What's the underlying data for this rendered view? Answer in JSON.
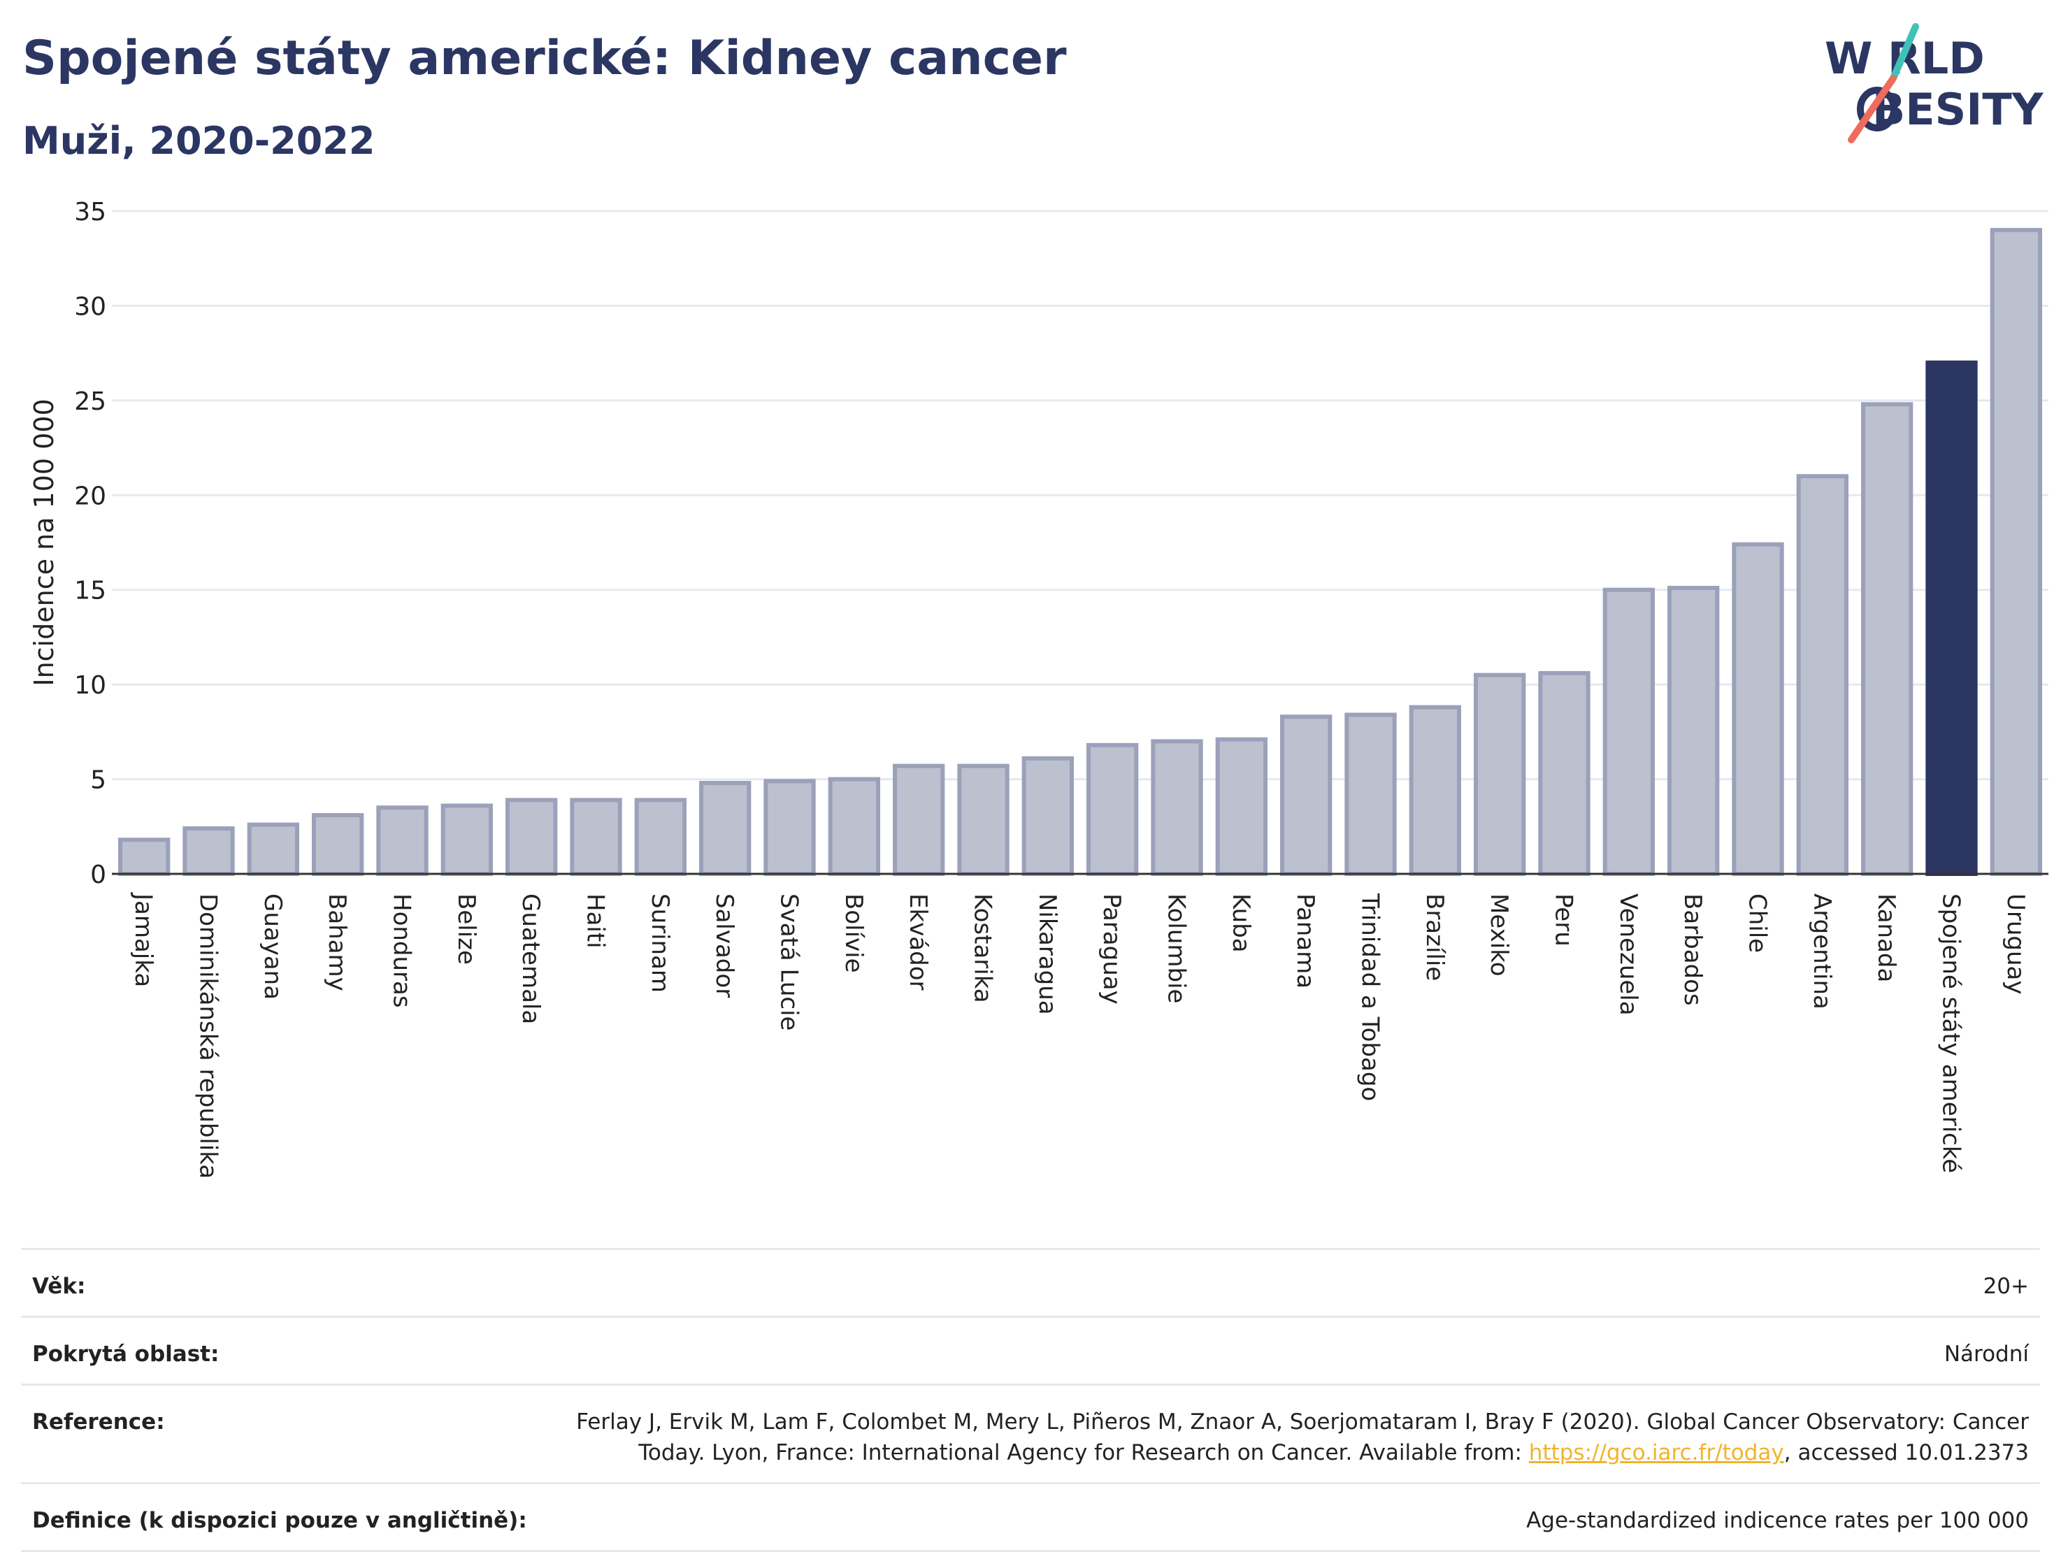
{
  "header": {
    "title": "Spojené státy americké: Kidney cancer",
    "subtitle": "Muži, 2020-2022"
  },
  "logo": {
    "line1": "W RLD",
    "line2": "BESITY",
    "colors": {
      "text": "#2b3663",
      "slash_teal": "#3fc1b8",
      "slash_coral": "#ef6b5b"
    }
  },
  "colors": {
    "bar_default": "#bcc0cf",
    "bar_default_stroke": "#9ba1b9",
    "bar_highlight": "#2b3663",
    "grid": "#e6e8ef",
    "axis": "#333333"
  },
  "chart_data": {
    "type": "bar",
    "title": "Spojené státy americké: Kidney cancer",
    "subtitle": "Muži, 2020-2022",
    "ylabel": "Incidence na 100 000",
    "ylim": [
      0,
      35
    ],
    "yticks": [
      0,
      5,
      10,
      15,
      20,
      25,
      30,
      35
    ],
    "grid": true,
    "highlight": "Spojené státy americké",
    "categories": [
      "Jamajka",
      "Dominikánská republika",
      "Guayana",
      "Bahamy",
      "Honduras",
      "Belize",
      "Guatemala",
      "Haiti",
      "Surinam",
      "Salvador",
      "Svatá Lucie",
      "Bolívie",
      "Ekvádor",
      "Kostarika",
      "Nikaragua",
      "Paraguay",
      "Kolumbie",
      "Kuba",
      "Panama",
      "Trinidad a Tobago",
      "Brazílie",
      "Mexiko",
      "Peru",
      "Venezuela",
      "Barbados",
      "Chile",
      "Argentina",
      "Kanada",
      "Spojené státy americké",
      "Uruguay"
    ],
    "values": [
      1.8,
      2.4,
      2.6,
      3.1,
      3.5,
      3.6,
      3.9,
      3.9,
      3.9,
      4.8,
      4.9,
      5.0,
      5.7,
      5.7,
      6.1,
      6.8,
      7.0,
      7.1,
      8.3,
      8.4,
      8.8,
      10.5,
      10.6,
      15.0,
      15.1,
      17.4,
      21.0,
      24.8,
      27.0,
      34.0
    ]
  },
  "info": {
    "rows": [
      {
        "label": "Věk:",
        "value": "20+"
      },
      {
        "label": "Pokrytá oblast:",
        "value": "Národní"
      },
      {
        "label": "Reference:",
        "value_line1": "Ferlay J, Ervik M, Lam F, Colombet M, Mery L, Piñeros M, Znaor A, Soerjomataram I, Bray F (2020). Global Cancer Observatory: Cancer",
        "value_line2_pre": "Today. Lyon, France: International Agency for Research on Cancer. Available from: ",
        "link_text": "https://gco.iarc.fr/today",
        "value_line2_post": ", accessed 10.01.2373"
      },
      {
        "label": "Definice (k dispozici pouze v angličtině):",
        "value": "Age-standardized indicence rates per 100 000"
      }
    ]
  }
}
